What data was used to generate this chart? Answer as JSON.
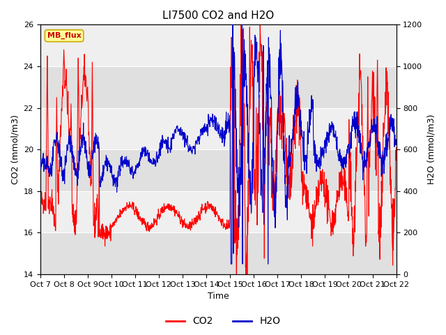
{
  "title": "LI7500 CO2 and H2O",
  "xlabel": "Time",
  "ylabel_left": "CO2 (mmol/m3)",
  "ylabel_right": "H2O (mmol/m3)",
  "ylim_left": [
    14,
    26
  ],
  "ylim_right": [
    0,
    1200
  ],
  "yticks_left": [
    14,
    16,
    18,
    20,
    22,
    24,
    26
  ],
  "yticks_right": [
    0,
    200,
    400,
    600,
    800,
    1000,
    1200
  ],
  "xtick_labels": [
    "Oct 7",
    "Oct 8",
    "Oct 9",
    "Oct 10",
    "Oct 11",
    "Oct 12",
    "Oct 13",
    "Oct 14",
    "Oct 15",
    "Oct 16",
    "Oct 17",
    "Oct 18",
    "Oct 19",
    "Oct 20",
    "Oct 21",
    "Oct 22"
  ],
  "co2_color": "#ff0000",
  "h2o_color": "#0000cc",
  "linewidth": 0.8,
  "fig_bg": "#ffffff",
  "axes_bg": "#ffffff",
  "band_color_dark": "#e0e0e0",
  "band_color_light": "#efefef",
  "watermark_text": "MB_flux",
  "watermark_bg": "#ffff99",
  "watermark_border": "#ccaa00",
  "watermark_text_color": "#cc0000",
  "title_fontsize": 11,
  "axis_label_fontsize": 9,
  "tick_fontsize": 8,
  "legend_fontsize": 10
}
